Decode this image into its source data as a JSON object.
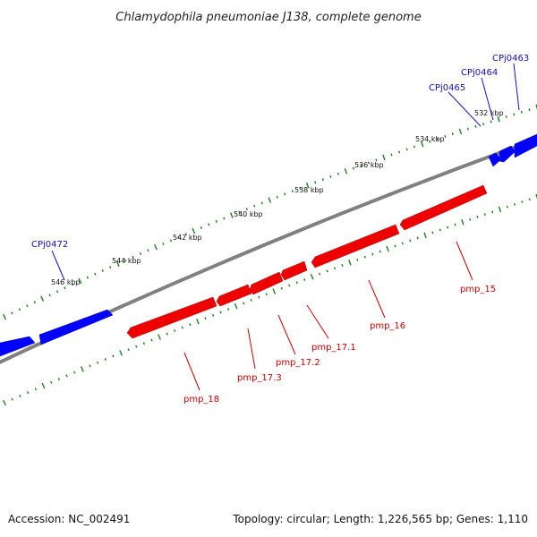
{
  "title": "Chlamydophila pneumoniae J138, complete genome",
  "footer": {
    "accession": "Accession: NC_002491",
    "topology": "Topology: circular; Length: 1,226,565 bp; Genes: 1,110"
  },
  "colors": {
    "backbone": "#808080",
    "forward_gene": "#0000ff",
    "reverse_gene": "#ee0000",
    "forward_label": "#1010c0",
    "reverse_label": "#cc0000",
    "tick": "#1e7d1e",
    "kbp_text": "#111111"
  },
  "ruler": {
    "labels": [
      "532 kbp",
      "534 kbp",
      "536 kbp",
      "538 kbp",
      "540 kbp",
      "542 kbp",
      "544 kbp",
      "546 kbp"
    ]
  },
  "genes": {
    "forward": [
      {
        "label": "CPj0463"
      },
      {
        "label": "CPj0464"
      },
      {
        "label": "CPj0465"
      },
      {
        "label": "CPj0472"
      }
    ],
    "reverse": [
      {
        "label": "pmp_15"
      },
      {
        "label": "pmp_16"
      },
      {
        "label": "pmp_17.1"
      },
      {
        "label": "pmp_17.2"
      },
      {
        "label": "pmp_17.3"
      },
      {
        "label": "pmp_18"
      }
    ]
  }
}
